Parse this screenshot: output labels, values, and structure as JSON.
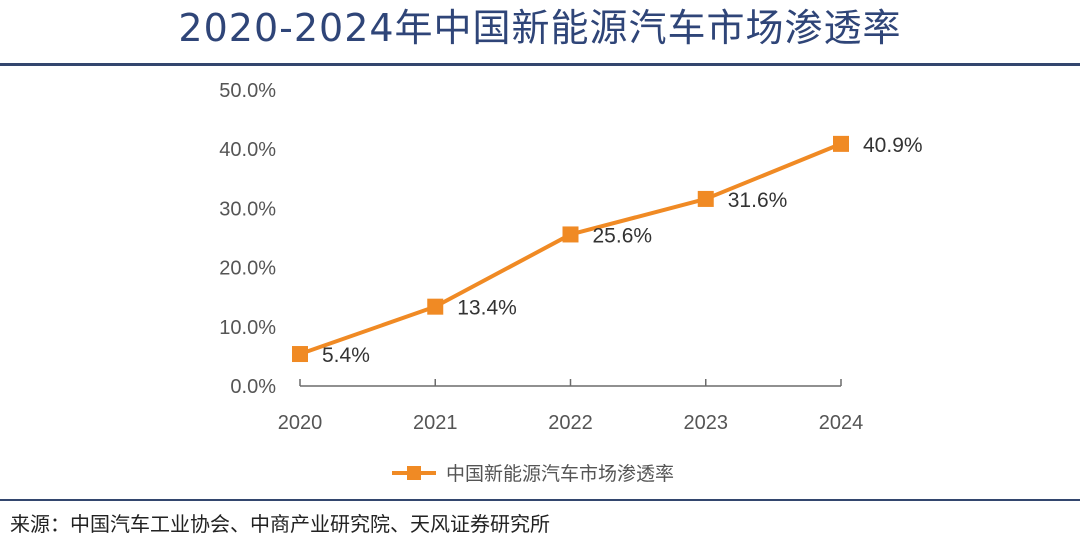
{
  "header": {
    "title": "2020-2024年中国新能源汽车市场渗透率"
  },
  "footer": {
    "source": "来源：中国汽车工业协会、中商产业研究院、天风证券研究所"
  },
  "colors": {
    "series": "#F08A24",
    "accent": "#2F4578",
    "axis": "#555555"
  },
  "chart_data": {
    "type": "line",
    "title": "2020-2024年中国新能源汽车市场渗透率",
    "x": [
      "2020",
      "2021",
      "2022",
      "2023",
      "2024"
    ],
    "series": [
      {
        "name": "中国新能源汽车市场渗透率",
        "values": [
          5.4,
          13.4,
          25.6,
          31.6,
          40.9
        ],
        "labels": [
          "5.4%",
          "13.4%",
          "25.6%",
          "31.6%",
          "40.9%"
        ],
        "marker": "square"
      }
    ],
    "yticks": [
      "0.0%",
      "10.0%",
      "20.0%",
      "30.0%",
      "40.0%",
      "50.0%"
    ],
    "ylim": [
      0,
      50
    ],
    "grid": false,
    "legend": "bottom-center",
    "xlabel": "",
    "ylabel": ""
  }
}
